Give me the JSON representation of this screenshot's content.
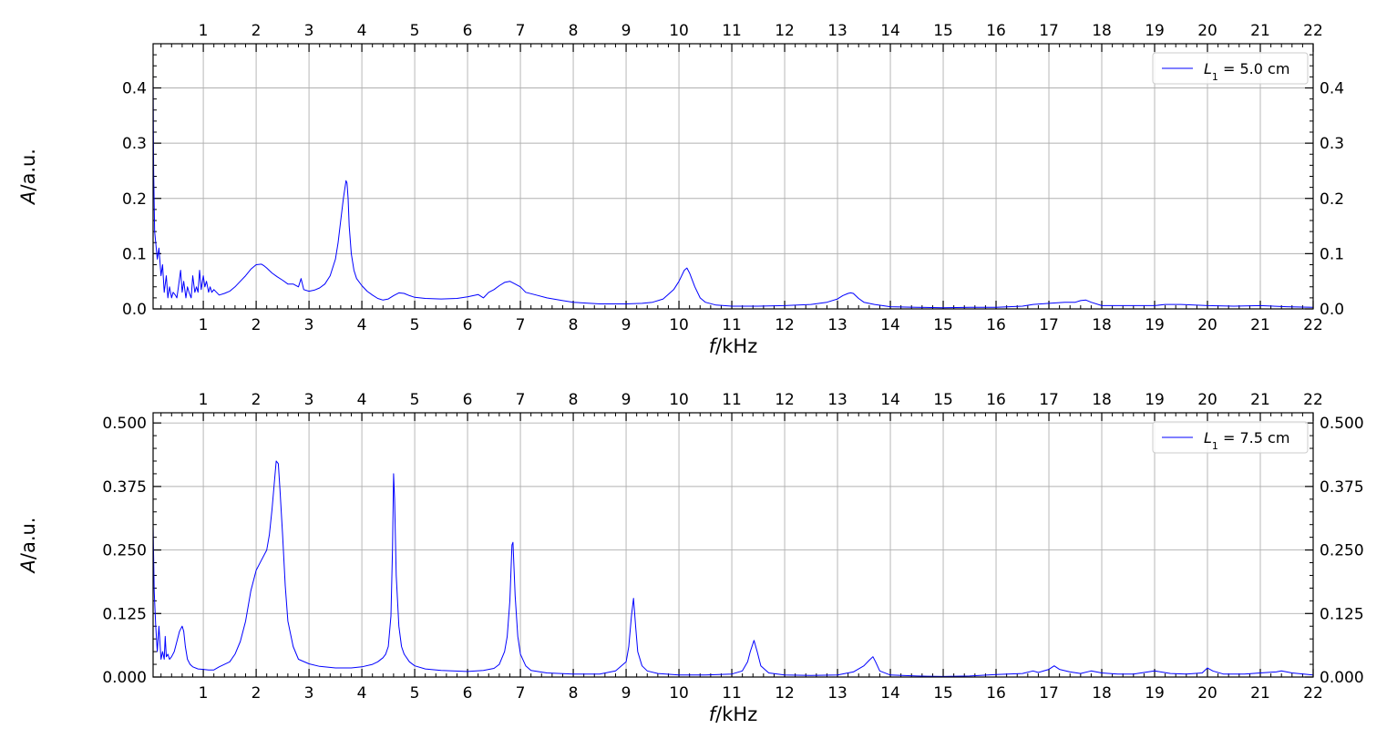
{
  "chart_data": [
    {
      "type": "line",
      "xlabel": "f/kHz",
      "ylabel": "A/a.u.",
      "xlim": [
        0.05,
        22
      ],
      "ylim": [
        0,
        0.48
      ],
      "xticks": [
        1,
        2,
        3,
        4,
        5,
        6,
        7,
        8,
        9,
        10,
        11,
        12,
        13,
        14,
        15,
        16,
        17,
        18,
        19,
        20,
        21,
        22
      ],
      "yticks": [
        0.0,
        0.1,
        0.2,
        0.3,
        0.4
      ],
      "ytick_labels": [
        "0.0",
        "0.1",
        "0.2",
        "0.3",
        "0.4"
      ],
      "grid": true,
      "legend_position": "top-right",
      "series": [
        {
          "name": "L1 = 5.0 cm",
          "legend_label": "L",
          "legend_sub": "1",
          "legend_suffix": " = 5.0 cm",
          "color": "#0000ff",
          "x": [
            0.05,
            0.06,
            0.08,
            0.1,
            0.13,
            0.16,
            0.2,
            0.23,
            0.26,
            0.3,
            0.33,
            0.36,
            0.4,
            0.43,
            0.47,
            0.5,
            0.53,
            0.57,
            0.6,
            0.63,
            0.67,
            0.7,
            0.73,
            0.77,
            0.8,
            0.84,
            0.87,
            0.9,
            0.93,
            0.96,
            1.0,
            1.03,
            1.06,
            1.1,
            1.13,
            1.16,
            1.2,
            1.25,
            1.3,
            1.4,
            1.5,
            1.6,
            1.7,
            1.8,
            1.9,
            2.0,
            2.1,
            2.15,
            2.2,
            2.3,
            2.4,
            2.5,
            2.6,
            2.7,
            2.8,
            2.85,
            2.9,
            3.0,
            3.1,
            3.2,
            3.3,
            3.4,
            3.5,
            3.55,
            3.6,
            3.65,
            3.7,
            3.72,
            3.74,
            3.76,
            3.8,
            3.85,
            3.9,
            4.0,
            4.1,
            4.2,
            4.3,
            4.4,
            4.5,
            4.6,
            4.7,
            4.8,
            4.9,
            5.0,
            5.2,
            5.5,
            5.8,
            6.0,
            6.2,
            6.3,
            6.4,
            6.5,
            6.6,
            6.7,
            6.8,
            6.9,
            7.0,
            7.1,
            7.3,
            7.5,
            7.8,
            8.0,
            8.5,
            9.0,
            9.3,
            9.5,
            9.7,
            9.9,
            10.0,
            10.1,
            10.15,
            10.2,
            10.3,
            10.4,
            10.5,
            10.7,
            11.0,
            11.5,
            12.0,
            12.5,
            12.8,
            13.0,
            13.1,
            13.2,
            13.25,
            13.3,
            13.4,
            13.5,
            13.7,
            14.0,
            14.5,
            15.0,
            15.5,
            16.0,
            16.5,
            16.7,
            17.0,
            17.3,
            17.5,
            17.6,
            17.7,
            17.8,
            18.0,
            18.5,
            19.0,
            19.2,
            19.5,
            20.0,
            20.5,
            21.0,
            21.5,
            22.0
          ],
          "y": [
            0.42,
            0.25,
            0.14,
            0.12,
            0.09,
            0.11,
            0.06,
            0.08,
            0.03,
            0.06,
            0.02,
            0.04,
            0.02,
            0.03,
            0.025,
            0.02,
            0.04,
            0.07,
            0.03,
            0.05,
            0.02,
            0.04,
            0.03,
            0.02,
            0.06,
            0.03,
            0.04,
            0.03,
            0.07,
            0.035,
            0.06,
            0.04,
            0.05,
            0.03,
            0.04,
            0.03,
            0.035,
            0.03,
            0.025,
            0.028,
            0.032,
            0.04,
            0.05,
            0.06,
            0.072,
            0.08,
            0.081,
            0.078,
            0.074,
            0.065,
            0.058,
            0.052,
            0.045,
            0.045,
            0.04,
            0.055,
            0.035,
            0.032,
            0.034,
            0.038,
            0.045,
            0.06,
            0.09,
            0.12,
            0.16,
            0.2,
            0.232,
            0.228,
            0.2,
            0.15,
            0.1,
            0.07,
            0.055,
            0.042,
            0.032,
            0.025,
            0.019,
            0.016,
            0.018,
            0.024,
            0.029,
            0.028,
            0.024,
            0.021,
            0.019,
            0.018,
            0.019,
            0.022,
            0.026,
            0.02,
            0.03,
            0.035,
            0.042,
            0.048,
            0.05,
            0.045,
            0.04,
            0.03,
            0.025,
            0.02,
            0.015,
            0.012,
            0.009,
            0.009,
            0.01,
            0.012,
            0.018,
            0.035,
            0.05,
            0.07,
            0.074,
            0.065,
            0.04,
            0.02,
            0.012,
            0.007,
            0.005,
            0.005,
            0.006,
            0.008,
            0.012,
            0.018,
            0.024,
            0.028,
            0.029,
            0.028,
            0.019,
            0.012,
            0.008,
            0.004,
            0.003,
            0.002,
            0.003,
            0.003,
            0.005,
            0.008,
            0.01,
            0.012,
            0.012,
            0.015,
            0.016,
            0.012,
            0.006,
            0.006,
            0.006,
            0.008,
            0.008,
            0.006,
            0.005,
            0.006,
            0.004,
            0.003
          ]
        }
      ]
    },
    {
      "type": "line",
      "xlabel": "f/kHz",
      "ylabel": "A/a.u.",
      "xlim": [
        0.05,
        22
      ],
      "ylim": [
        0,
        0.52
      ],
      "xticks": [
        1,
        2,
        3,
        4,
        5,
        6,
        7,
        8,
        9,
        10,
        11,
        12,
        13,
        14,
        15,
        16,
        17,
        18,
        19,
        20,
        21,
        22
      ],
      "yticks": [
        0.0,
        0.125,
        0.25,
        0.375,
        0.5
      ],
      "ytick_labels": [
        "0.000",
        "0.125",
        "0.250",
        "0.375",
        "0.500"
      ],
      "grid": true,
      "legend_position": "top-right",
      "series": [
        {
          "name": "L1 = 7.5 cm",
          "legend_label": "L",
          "legend_sub": "1",
          "legend_suffix": " = 7.5 cm",
          "color": "#0000ff",
          "x": [
            0.05,
            0.07,
            0.1,
            0.13,
            0.16,
            0.2,
            0.23,
            0.26,
            0.28,
            0.3,
            0.33,
            0.36,
            0.4,
            0.45,
            0.5,
            0.55,
            0.6,
            0.63,
            0.66,
            0.7,
            0.75,
            0.8,
            0.9,
            1.0,
            1.1,
            1.2,
            1.3,
            1.4,
            1.5,
            1.6,
            1.7,
            1.8,
            1.9,
            2.0,
            2.1,
            2.2,
            2.25,
            2.3,
            2.35,
            2.38,
            2.42,
            2.45,
            2.5,
            2.55,
            2.6,
            2.7,
            2.8,
            3.0,
            3.2,
            3.5,
            3.8,
            4.0,
            4.2,
            4.3,
            4.4,
            4.45,
            4.5,
            4.55,
            4.58,
            4.6,
            4.62,
            4.65,
            4.7,
            4.75,
            4.8,
            4.9,
            5.0,
            5.2,
            5.5,
            6.0,
            6.3,
            6.5,
            6.6,
            6.7,
            6.75,
            6.8,
            6.84,
            6.86,
            6.9,
            6.95,
            7.0,
            7.1,
            7.2,
            7.5,
            8.0,
            8.5,
            8.8,
            9.0,
            9.05,
            9.1,
            9.14,
            9.18,
            9.22,
            9.3,
            9.4,
            9.6,
            10.0,
            10.5,
            11.0,
            11.2,
            11.3,
            11.35,
            11.42,
            11.48,
            11.55,
            11.7,
            12.0,
            12.5,
            13.0,
            13.3,
            13.5,
            13.6,
            13.67,
            13.72,
            13.8,
            14.0,
            14.5,
            15.0,
            15.5,
            16.0,
            16.5,
            16.7,
            16.8,
            17.0,
            17.1,
            17.2,
            17.4,
            17.6,
            17.8,
            18.0,
            18.3,
            18.6,
            18.8,
            19.0,
            19.3,
            19.6,
            19.9,
            20.0,
            20.1,
            20.3,
            20.7,
            21.0,
            21.3,
            21.4,
            21.6,
            22.0
          ],
          "y": [
            0.3,
            0.17,
            0.1,
            0.05,
            0.1,
            0.035,
            0.05,
            0.035,
            0.08,
            0.04,
            0.045,
            0.035,
            0.04,
            0.05,
            0.07,
            0.09,
            0.1,
            0.09,
            0.06,
            0.035,
            0.025,
            0.02,
            0.016,
            0.015,
            0.014,
            0.014,
            0.02,
            0.025,
            0.03,
            0.045,
            0.07,
            0.11,
            0.17,
            0.21,
            0.23,
            0.25,
            0.28,
            0.33,
            0.39,
            0.425,
            0.42,
            0.37,
            0.28,
            0.18,
            0.11,
            0.06,
            0.035,
            0.026,
            0.021,
            0.018,
            0.018,
            0.02,
            0.025,
            0.03,
            0.038,
            0.045,
            0.06,
            0.12,
            0.25,
            0.4,
            0.35,
            0.2,
            0.1,
            0.06,
            0.045,
            0.03,
            0.022,
            0.016,
            0.013,
            0.011,
            0.013,
            0.017,
            0.025,
            0.05,
            0.08,
            0.15,
            0.26,
            0.265,
            0.16,
            0.08,
            0.045,
            0.022,
            0.013,
            0.008,
            0.006,
            0.006,
            0.012,
            0.03,
            0.06,
            0.12,
            0.155,
            0.1,
            0.05,
            0.022,
            0.012,
            0.007,
            0.004,
            0.004,
            0.006,
            0.012,
            0.03,
            0.05,
            0.072,
            0.05,
            0.022,
            0.008,
            0.004,
            0.003,
            0.004,
            0.01,
            0.022,
            0.033,
            0.04,
            0.03,
            0.012,
            0.004,
            0.002,
            0.001,
            0.002,
            0.005,
            0.007,
            0.012,
            0.009,
            0.015,
            0.022,
            0.015,
            0.01,
            0.007,
            0.012,
            0.008,
            0.006,
            0.006,
            0.009,
            0.012,
            0.007,
            0.006,
            0.008,
            0.018,
            0.012,
            0.006,
            0.006,
            0.008,
            0.01,
            0.012,
            0.008,
            0.004
          ]
        }
      ]
    }
  ]
}
